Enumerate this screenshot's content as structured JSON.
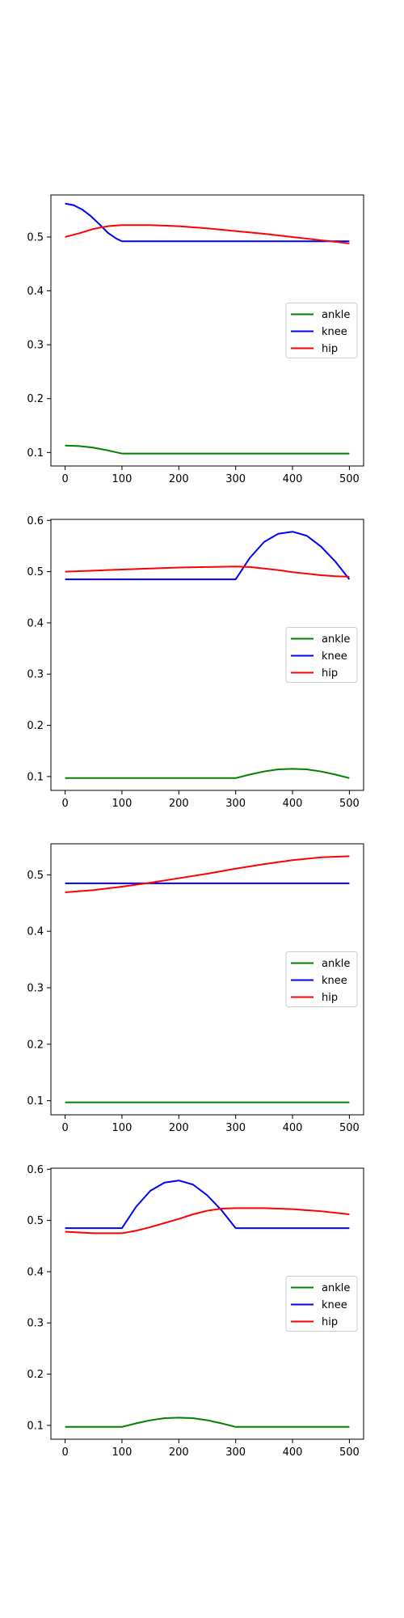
{
  "colors": {
    "ankle": "#008000",
    "knee": "#0000ff",
    "hip": "#ff0000"
  },
  "chart_data": [
    {
      "type": "line",
      "xlim": [
        -25,
        525
      ],
      "ylim": [
        0.075,
        0.578
      ],
      "xticks": [
        0,
        100,
        200,
        300,
        400,
        500
      ],
      "yticks": [
        0.1,
        0.2,
        0.3,
        0.4,
        0.5
      ],
      "legend": "center-right",
      "grid": false,
      "series": [
        {
          "name": "ankle",
          "color": "#008000",
          "x": [
            0,
            25,
            50,
            75,
            100,
            200,
            300,
            400,
            500
          ],
          "y": [
            0.113,
            0.112,
            0.109,
            0.104,
            0.098,
            0.098,
            0.098,
            0.098,
            0.098
          ]
        },
        {
          "name": "knee",
          "color": "#0000ff",
          "x": [
            0,
            15,
            30,
            45,
            60,
            75,
            90,
            100,
            200,
            300,
            400,
            500
          ],
          "y": [
            0.562,
            0.559,
            0.551,
            0.539,
            0.524,
            0.508,
            0.497,
            0.492,
            0.492,
            0.492,
            0.492,
            0.492
          ]
        },
        {
          "name": "hip",
          "color": "#ff0000",
          "x": [
            0,
            25,
            50,
            75,
            100,
            125,
            150,
            200,
            250,
            300,
            350,
            400,
            450,
            500
          ],
          "y": [
            0.5,
            0.507,
            0.515,
            0.52,
            0.522,
            0.522,
            0.522,
            0.52,
            0.516,
            0.511,
            0.506,
            0.5,
            0.494,
            0.488
          ]
        }
      ]
    },
    {
      "type": "line",
      "xlim": [
        -25,
        525
      ],
      "ylim": [
        0.073,
        0.602
      ],
      "xticks": [
        0,
        100,
        200,
        300,
        400,
        500
      ],
      "yticks": [
        0.1,
        0.2,
        0.3,
        0.4,
        0.5,
        0.6
      ],
      "legend": "center-right",
      "grid": false,
      "series": [
        {
          "name": "ankle",
          "color": "#008000",
          "x": [
            0,
            100,
            200,
            300,
            325,
            350,
            375,
            400,
            425,
            450,
            475,
            500
          ],
          "y": [
            0.097,
            0.097,
            0.097,
            0.097,
            0.104,
            0.11,
            0.114,
            0.115,
            0.114,
            0.11,
            0.104,
            0.097
          ]
        },
        {
          "name": "knee",
          "color": "#0000ff",
          "x": [
            0,
            100,
            200,
            300,
            325,
            350,
            375,
            400,
            425,
            450,
            475,
            500
          ],
          "y": [
            0.485,
            0.485,
            0.485,
            0.485,
            0.527,
            0.558,
            0.574,
            0.578,
            0.57,
            0.549,
            0.52,
            0.485
          ]
        },
        {
          "name": "hip",
          "color": "#ff0000",
          "x": [
            0,
            50,
            100,
            150,
            200,
            250,
            300,
            325,
            350,
            375,
            400,
            425,
            450,
            475,
            500
          ],
          "y": [
            0.5,
            0.502,
            0.504,
            0.506,
            0.508,
            0.509,
            0.51,
            0.509,
            0.506,
            0.503,
            0.499,
            0.496,
            0.493,
            0.491,
            0.49
          ]
        }
      ]
    },
    {
      "type": "line",
      "xlim": [
        -25,
        525
      ],
      "ylim": [
        0.075,
        0.555
      ],
      "xticks": [
        0,
        100,
        200,
        300,
        400,
        500
      ],
      "yticks": [
        0.1,
        0.2,
        0.3,
        0.4,
        0.5
      ],
      "legend": "center-right",
      "grid": false,
      "series": [
        {
          "name": "ankle",
          "color": "#008000",
          "x": [
            0,
            100,
            200,
            300,
            400,
            500
          ],
          "y": [
            0.097,
            0.097,
            0.097,
            0.097,
            0.097,
            0.097
          ]
        },
        {
          "name": "knee",
          "color": "#0000ff",
          "x": [
            0,
            100,
            200,
            300,
            400,
            500
          ],
          "y": [
            0.485,
            0.485,
            0.485,
            0.485,
            0.485,
            0.485
          ]
        },
        {
          "name": "hip",
          "color": "#ff0000",
          "x": [
            0,
            50,
            100,
            150,
            200,
            250,
            300,
            350,
            400,
            450,
            500
          ],
          "y": [
            0.469,
            0.473,
            0.479,
            0.486,
            0.494,
            0.502,
            0.511,
            0.519,
            0.526,
            0.531,
            0.533
          ]
        }
      ]
    },
    {
      "type": "line",
      "xlim": [
        -25,
        525
      ],
      "ylim": [
        0.073,
        0.602
      ],
      "xticks": [
        0,
        100,
        200,
        300,
        400,
        500
      ],
      "yticks": [
        0.1,
        0.2,
        0.3,
        0.4,
        0.5,
        0.6
      ],
      "legend": "center-right",
      "grid": false,
      "series": [
        {
          "name": "ankle",
          "color": "#008000",
          "x": [
            0,
            100,
            125,
            150,
            175,
            200,
            225,
            250,
            275,
            300,
            400,
            500
          ],
          "y": [
            0.097,
            0.097,
            0.104,
            0.11,
            0.114,
            0.115,
            0.114,
            0.11,
            0.104,
            0.097,
            0.097,
            0.097
          ]
        },
        {
          "name": "knee",
          "color": "#0000ff",
          "x": [
            0,
            100,
            125,
            150,
            175,
            200,
            225,
            250,
            275,
            300,
            400,
            500
          ],
          "y": [
            0.485,
            0.485,
            0.527,
            0.558,
            0.574,
            0.578,
            0.57,
            0.549,
            0.52,
            0.485,
            0.485,
            0.485
          ]
        },
        {
          "name": "hip",
          "color": "#ff0000",
          "x": [
            0,
            50,
            100,
            125,
            150,
            175,
            200,
            225,
            250,
            275,
            300,
            350,
            400,
            450,
            500
          ],
          "y": [
            0.478,
            0.475,
            0.475,
            0.48,
            0.487,
            0.495,
            0.503,
            0.512,
            0.519,
            0.523,
            0.524,
            0.524,
            0.522,
            0.518,
            0.512
          ]
        }
      ]
    }
  ]
}
